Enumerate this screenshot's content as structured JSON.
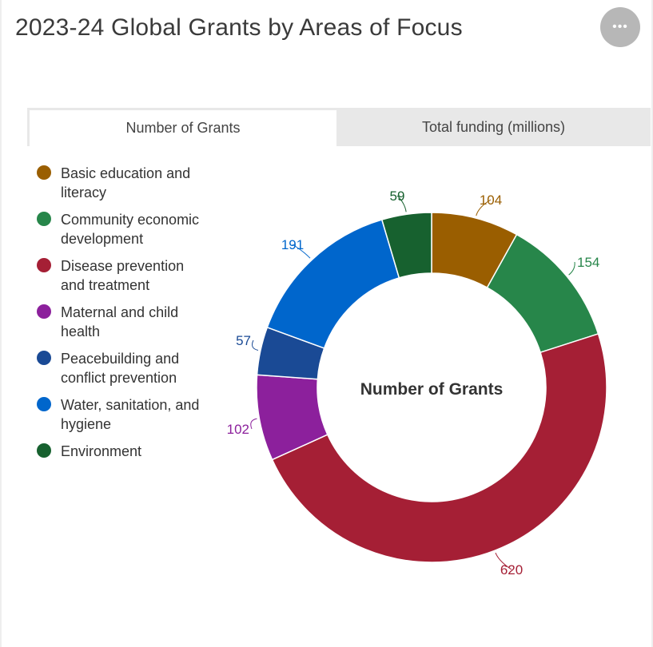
{
  "title": "2023-24 Global Grants by Areas of Focus",
  "more_button": {
    "label": "•••",
    "icon": "ellipsis-icon"
  },
  "tabs": [
    {
      "label": "Number of Grants",
      "active": true
    },
    {
      "label": "Total funding (millions)",
      "active": false
    }
  ],
  "chart_data": {
    "type": "pie",
    "variant": "donut",
    "center_label": "Number of Grants",
    "legend_position": "left",
    "categories": [
      "Basic education and literacy",
      "Community economic development",
      "Disease prevention and treatment",
      "Maternal and child health",
      "Peacebuilding and conflict prevention",
      "Water, sanitation, and hygiene",
      "Environment"
    ],
    "values": [
      104,
      154,
      620,
      102,
      57,
      191,
      59
    ],
    "colors": [
      "#9a5e00",
      "#27864a",
      "#a51f35",
      "#8c209c",
      "#1a4a95",
      "#0066cc",
      "#17612f"
    ],
    "legend_lines": [
      [
        "Basic education and",
        "literacy"
      ],
      [
        "Community economic",
        "development"
      ],
      [
        "Disease prevention",
        "and treatment"
      ],
      [
        "Maternal and child",
        "health"
      ],
      [
        "Peacebuilding and",
        "conflict prevention"
      ],
      [
        "Water, sanitation, and",
        "hygiene"
      ],
      [
        "Environment"
      ]
    ]
  }
}
